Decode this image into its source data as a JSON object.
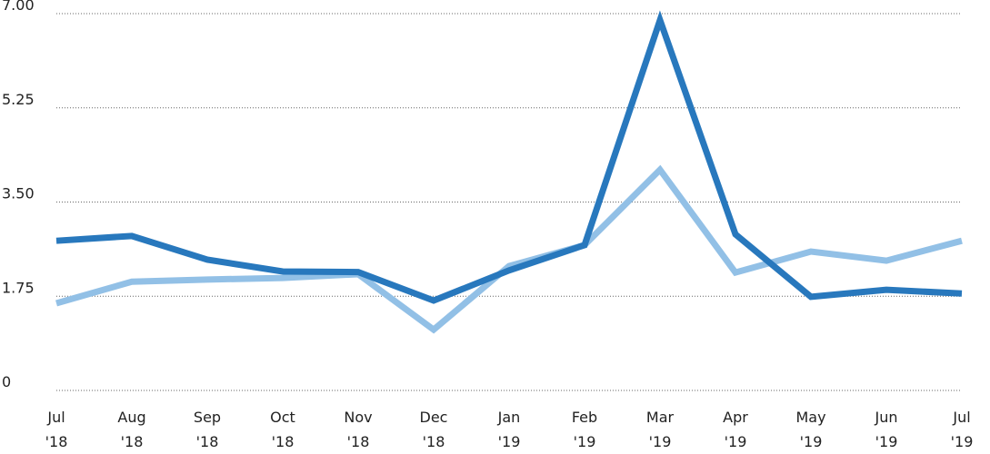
{
  "chart_data": {
    "type": "line",
    "categories": [
      "Jul\n'18",
      "Aug\n'18",
      "Sep\n'18",
      "Oct\n'18",
      "Nov\n'18",
      "Dec\n'18",
      "Jan\n'19",
      "Feb\n'19",
      "Mar\n'19",
      "Apr\n'19",
      "May\n'19",
      "Jun\n'19",
      "Jul\n'19"
    ],
    "series": [
      {
        "color": "#2878bd",
        "values": [
          2.78,
          2.87,
          2.43,
          2.21,
          2.2,
          1.67,
          2.23,
          2.7,
          6.88,
          2.9,
          1.74,
          1.87,
          1.8
        ]
      },
      {
        "color": "#92c0e6",
        "values": [
          1.62,
          2.02,
          2.06,
          2.09,
          2.16,
          1.13,
          2.31,
          2.7,
          4.1,
          2.19,
          2.58,
          2.41,
          2.78
        ]
      }
    ],
    "ylim": [
      0,
      7
    ],
    "yticks": [
      0,
      1.75,
      {
        "value": 3.5,
        "label": "3.50"
      },
      5.25,
      {
        "value": 7,
        "label": "7.00"
      }
    ],
    "grid": true
  }
}
